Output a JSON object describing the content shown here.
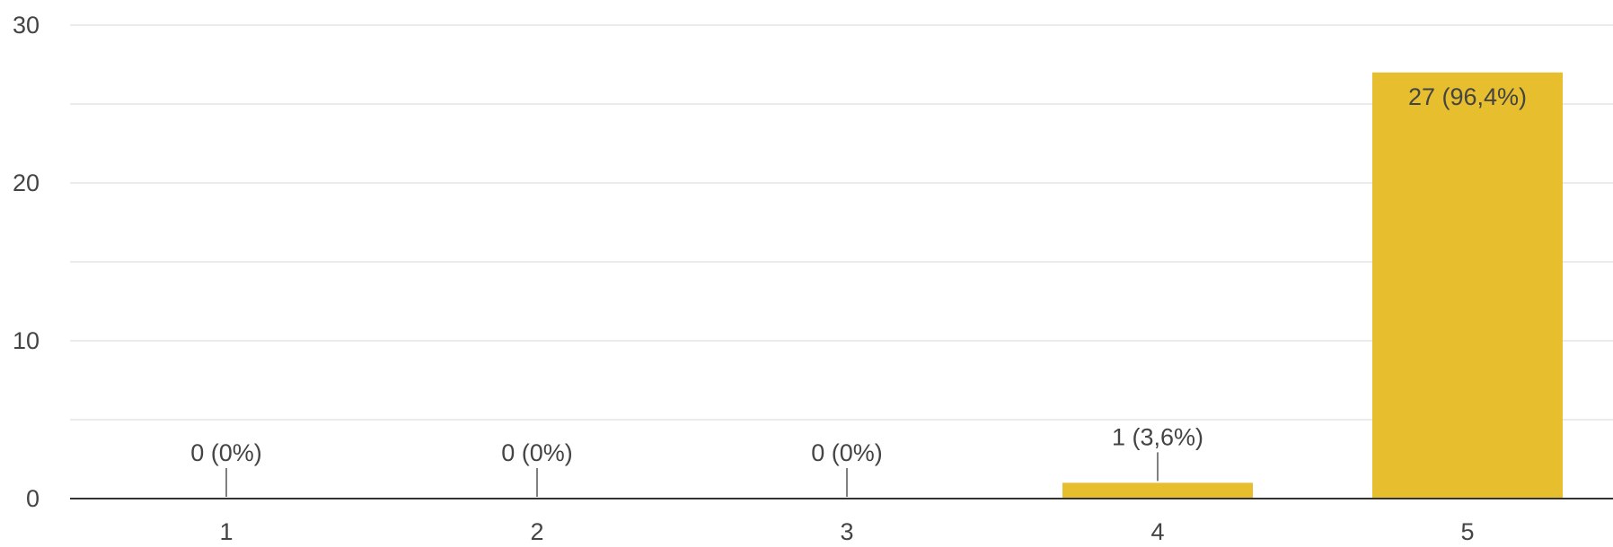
{
  "chart_data": {
    "type": "bar",
    "categories": [
      "1",
      "2",
      "3",
      "4",
      "5"
    ],
    "values": [
      0,
      0,
      0,
      1,
      27
    ],
    "data_labels": [
      "0 (0%)",
      "0 (0%)",
      "0 (0%)",
      "1 (3,6%)",
      "27 (96,4%)"
    ],
    "ylim": [
      0,
      30
    ],
    "yticks": [
      "0",
      "10",
      "20",
      "30"
    ],
    "grid": true,
    "bar_color": "#e6be2e"
  }
}
